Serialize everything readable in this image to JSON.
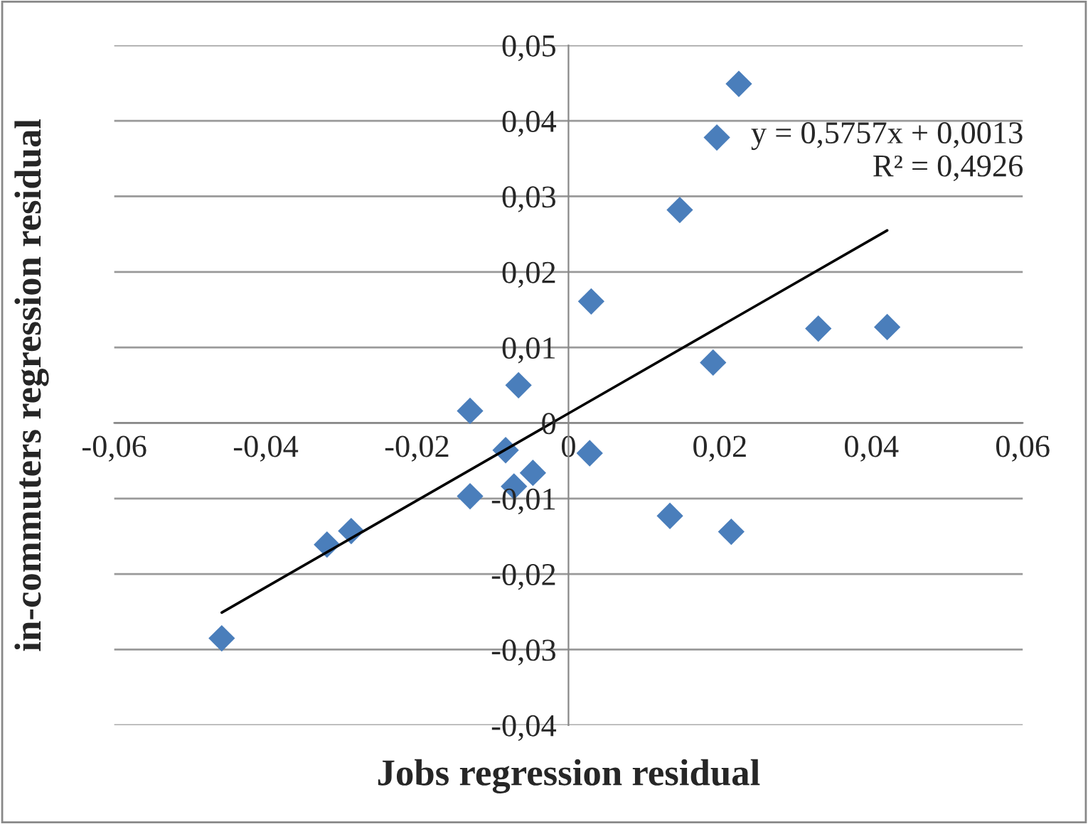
{
  "chart_data": {
    "type": "scatter",
    "xlabel": "Jobs regression residual",
    "ylabel": "in-commuters regression residual",
    "xlim": [
      -0.06,
      0.06
    ],
    "ylim": [
      -0.04,
      0.05
    ],
    "xticks": [
      {
        "value": -0.06,
        "label": "-0,06"
      },
      {
        "value": -0.04,
        "label": "-0,04"
      },
      {
        "value": -0.02,
        "label": "-0,02"
      },
      0,
      {
        "value": 0.02,
        "label": "0,02"
      },
      {
        "value": 0.04,
        "label": "0,04"
      },
      {
        "value": 0.06,
        "label": "0,06"
      }
    ],
    "yticks": [
      {
        "value": -0.04,
        "label": "-0,04"
      },
      {
        "value": -0.03,
        "label": "-0,03"
      },
      {
        "value": -0.02,
        "label": "-0,02"
      },
      {
        "value": -0.01,
        "label": "-0,01"
      },
      0,
      {
        "value": 0.01,
        "label": "0,01"
      },
      {
        "value": 0.02,
        "label": "0,02"
      },
      {
        "value": 0.03,
        "label": "0,03"
      },
      {
        "value": 0.04,
        "label": "0,04"
      },
      {
        "value": 0.05,
        "label": "0,05"
      }
    ],
    "grid": "y",
    "series": [
      {
        "marker": "diamond",
        "color": "#4a7ebb",
        "x": [
          -0.0458,
          -0.0319,
          -0.0287,
          -0.013,
          -0.013,
          -0.0083,
          -0.0066,
          -0.0072,
          -0.0047,
          0.003,
          0.0028,
          0.0134,
          0.0147,
          0.0191,
          0.0196,
          0.0215,
          0.0225,
          0.033,
          0.0421
        ],
        "values": [
          -0.0285,
          -0.0161,
          -0.0143,
          0.0016,
          -0.0097,
          -0.0036,
          0.005,
          -0.0084,
          -0.0066,
          0.0161,
          -0.004,
          -0.0123,
          0.0282,
          0.008,
          0.0378,
          -0.0144,
          0.0449,
          0.0125,
          0.0127
        ]
      },
      {
        "type": "line",
        "color": "#000000",
        "x": [
          -0.0458,
          0.0421
        ],
        "values": [
          -0.0251,
          0.0255
        ]
      }
    ],
    "annotations": [
      {
        "text": "y = 0,5757x + 0,0013\nR² = 0,4926",
        "x": 0.0421,
        "y": 0.0255
      }
    ]
  }
}
